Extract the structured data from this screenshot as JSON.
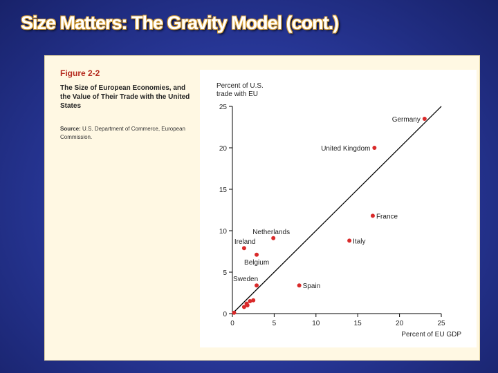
{
  "slide": {
    "title": "Size Matters: The Gravity Model (cont.)"
  },
  "figure": {
    "label": "Figure 2-2",
    "caption": "The Size of European Economies, and the Value of Their Trade with the United States",
    "source_label": "Source:",
    "source_text": "U.S. Department of Commerce, European Commission."
  },
  "colors": {
    "point": "#d92a2a",
    "line": "#000000",
    "background": "#2a3a9e"
  },
  "chart_data": {
    "type": "scatter",
    "title": "Figure 2-2",
    "xlabel": "Percent of EU GDP",
    "ylabel_line1": "Percent of U.S.",
    "ylabel_line2": "trade with EU",
    "xlim": [
      0,
      25
    ],
    "ylim": [
      0,
      25
    ],
    "xticks": [
      0,
      5,
      10,
      15,
      20,
      25
    ],
    "yticks": [
      0,
      5,
      10,
      15,
      20,
      25
    ],
    "reference_line": {
      "from": [
        0,
        0
      ],
      "to": [
        25,
        25
      ]
    },
    "points": [
      {
        "label": "Germany",
        "x": 23,
        "y": 23.5,
        "label_side": "left"
      },
      {
        "label": "United Kingdom",
        "x": 17,
        "y": 20,
        "label_side": "left"
      },
      {
        "label": "France",
        "x": 16.8,
        "y": 11.8,
        "label_side": "right"
      },
      {
        "label": "Italy",
        "x": 14,
        "y": 8.8,
        "label_side": "right"
      },
      {
        "label": "Netherlands",
        "x": 4.9,
        "y": 9.1,
        "label_side": "above"
      },
      {
        "label": "Ireland",
        "x": 1.4,
        "y": 7.9,
        "label_side": "above"
      },
      {
        "label": "Belgium",
        "x": 2.9,
        "y": 7.1,
        "label_side": "below"
      },
      {
        "label": "Sweden",
        "x": 2.9,
        "y": 3.4,
        "label_side": "above"
      },
      {
        "label": "Spain",
        "x": 8,
        "y": 3.4,
        "label_side": "right"
      },
      {
        "label": "",
        "x": 1.4,
        "y": 0.8,
        "label_side": "none"
      },
      {
        "label": "",
        "x": 1.7,
        "y": 1.2,
        "label_side": "none"
      },
      {
        "label": "",
        "x": 2.1,
        "y": 1.5,
        "label_side": "none"
      },
      {
        "label": "",
        "x": 2.5,
        "y": 1.6,
        "label_side": "none"
      },
      {
        "label": "",
        "x": 1.8,
        "y": 1.0,
        "label_side": "none"
      },
      {
        "label": "",
        "x": 0.2,
        "y": 0.1,
        "label_side": "none"
      }
    ]
  }
}
